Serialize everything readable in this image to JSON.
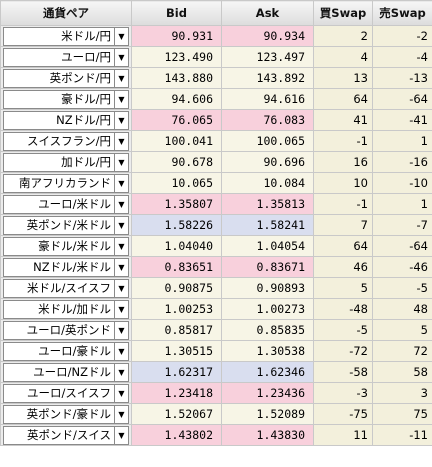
{
  "headers": {
    "pair": "通貨ペア",
    "bid": "Bid",
    "ask": "Ask",
    "buy_swap": "買Swap",
    "sell_swap": "売Swap"
  },
  "colors": {
    "neutral": "#f7f5e6",
    "up": "#f8d0dc",
    "down": "#d9deef",
    "swap_bg": "#f3f0dc"
  },
  "rows": [
    {
      "pair": "米ドル/円",
      "bid": "90.931",
      "ask": "90.934",
      "buy": "2",
      "sell": "-2",
      "state": "up"
    },
    {
      "pair": "ユーロ/円",
      "bid": "123.490",
      "ask": "123.497",
      "buy": "4",
      "sell": "-4",
      "state": "neutral"
    },
    {
      "pair": "英ポンド/円",
      "bid": "143.880",
      "ask": "143.892",
      "buy": "13",
      "sell": "-13",
      "state": "neutral"
    },
    {
      "pair": "豪ドル/円",
      "bid": "94.606",
      "ask": "94.616",
      "buy": "64",
      "sell": "-64",
      "state": "neutral"
    },
    {
      "pair": "NZドル/円",
      "bid": "76.065",
      "ask": "76.083",
      "buy": "41",
      "sell": "-41",
      "state": "up"
    },
    {
      "pair": "スイスフラン/円",
      "bid": "100.041",
      "ask": "100.065",
      "buy": "-1",
      "sell": "1",
      "state": "neutral"
    },
    {
      "pair": "加ドル/円",
      "bid": "90.678",
      "ask": "90.696",
      "buy": "16",
      "sell": "-16",
      "state": "neutral"
    },
    {
      "pair": "南アフリカランド",
      "bid": "10.065",
      "ask": "10.084",
      "buy": "10",
      "sell": "-10",
      "state": "neutral"
    },
    {
      "pair": "ユーロ/米ドル",
      "bid": "1.35807",
      "ask": "1.35813",
      "buy": "-1",
      "sell": "1",
      "state": "up"
    },
    {
      "pair": "英ポンド/米ドル",
      "bid": "1.58226",
      "ask": "1.58241",
      "buy": "7",
      "sell": "-7",
      "state": "down"
    },
    {
      "pair": "豪ドル/米ドル",
      "bid": "1.04040",
      "ask": "1.04054",
      "buy": "64",
      "sell": "-64",
      "state": "neutral"
    },
    {
      "pair": "NZドル/米ドル",
      "bid": "0.83651",
      "ask": "0.83671",
      "buy": "46",
      "sell": "-46",
      "state": "up"
    },
    {
      "pair": "米ドル/スイスフ",
      "bid": "0.90875",
      "ask": "0.90893",
      "buy": "5",
      "sell": "-5",
      "state": "neutral"
    },
    {
      "pair": "米ドル/加ドル",
      "bid": "1.00253",
      "ask": "1.00273",
      "buy": "-48",
      "sell": "48",
      "state": "neutral"
    },
    {
      "pair": "ユーロ/英ポンド",
      "bid": "0.85817",
      "ask": "0.85835",
      "buy": "-5",
      "sell": "5",
      "state": "neutral"
    },
    {
      "pair": "ユーロ/豪ドル",
      "bid": "1.30515",
      "ask": "1.30538",
      "buy": "-72",
      "sell": "72",
      "state": "neutral"
    },
    {
      "pair": "ユーロ/NZドル",
      "bid": "1.62317",
      "ask": "1.62346",
      "buy": "-58",
      "sell": "58",
      "state": "down"
    },
    {
      "pair": "ユーロ/スイスフ",
      "bid": "1.23418",
      "ask": "1.23436",
      "buy": "-3",
      "sell": "3",
      "state": "up"
    },
    {
      "pair": "英ポンド/豪ドル",
      "bid": "1.52067",
      "ask": "1.52089",
      "buy": "-75",
      "sell": "75",
      "state": "neutral"
    },
    {
      "pair": "英ポンド/スイス",
      "bid": "1.43802",
      "ask": "1.43830",
      "buy": "11",
      "sell": "-11",
      "state": "up"
    }
  ]
}
